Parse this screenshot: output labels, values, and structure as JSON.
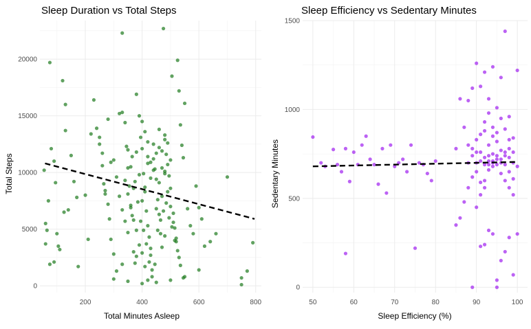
{
  "chart_data": [
    {
      "type": "scatter",
      "title": "Sleep Duration vs Total Steps",
      "xlabel": "Total Minutes Asleep",
      "ylabel": "Total Steps",
      "xlim": [
        40,
        820
      ],
      "ylim": [
        -600,
        23400
      ],
      "xticks": [
        200,
        400,
        600,
        800
      ],
      "yticks": [
        0,
        5000,
        10000,
        15000,
        20000
      ],
      "grid": true,
      "point_color": "#1e7a1e",
      "trend_color": "#000000",
      "trend": {
        "x": [
          58,
          796
        ],
        "y": [
          10800,
          5900
        ]
      },
      "points": [
        [
          75,
          19700
        ],
        [
          120,
          18100
        ],
        [
          55,
          10200
        ],
        [
          70,
          7500
        ],
        [
          65,
          4900
        ],
        [
          80,
          12100
        ],
        [
          60,
          5500
        ],
        [
          90,
          11000
        ],
        [
          95,
          9100
        ],
        [
          100,
          4600
        ],
        [
          105,
          3500
        ],
        [
          110,
          3200
        ],
        [
          125,
          6500
        ],
        [
          130,
          13700
        ],
        [
          140,
          6700
        ],
        [
          150,
          11500
        ],
        [
          160,
          9200
        ],
        [
          170,
          7800
        ],
        [
          175,
          1700
        ],
        [
          130,
          16000
        ],
        [
          60,
          3700
        ],
        [
          75,
          1900
        ],
        [
          90,
          2100
        ],
        [
          230,
          16400
        ],
        [
          240,
          13900
        ],
        [
          250,
          12500
        ],
        [
          260,
          11700
        ],
        [
          265,
          9000
        ],
        [
          270,
          8100
        ],
        [
          280,
          7200
        ],
        [
          285,
          5900
        ],
        [
          290,
          4100
        ],
        [
          300,
          2800
        ],
        [
          310,
          1300
        ],
        [
          320,
          15200
        ],
        [
          330,
          22300
        ],
        [
          340,
          14400
        ],
        [
          345,
          12300
        ],
        [
          350,
          10400
        ],
        [
          355,
          8800
        ],
        [
          360,
          7100
        ],
        [
          365,
          6200
        ],
        [
          370,
          3000
        ],
        [
          375,
          2000
        ],
        [
          380,
          16900
        ],
        [
          390,
          15000
        ],
        [
          395,
          13100
        ],
        [
          400,
          12100
        ],
        [
          405,
          9900
        ],
        [
          410,
          8700
        ],
        [
          415,
          6600
        ],
        [
          420,
          5300
        ],
        [
          425,
          4300
        ],
        [
          430,
          2700
        ],
        [
          435,
          1400
        ],
        [
          440,
          11200
        ],
        [
          445,
          10300
        ],
        [
          450,
          9400
        ],
        [
          455,
          7600
        ],
        [
          460,
          6300
        ],
        [
          465,
          4600
        ],
        [
          470,
          3400
        ],
        [
          475,
          22700
        ],
        [
          480,
          12900
        ],
        [
          485,
          11600
        ],
        [
          490,
          10700
        ],
        [
          495,
          9700
        ],
        [
          500,
          8600
        ],
        [
          505,
          18500
        ],
        [
          510,
          6400
        ],
        [
          515,
          5100
        ],
        [
          520,
          3900
        ],
        [
          525,
          19900
        ],
        [
          530,
          17200
        ],
        [
          535,
          14200
        ],
        [
          540,
          12400
        ],
        [
          545,
          11300
        ],
        [
          550,
          16100
        ],
        [
          560,
          6800
        ],
        [
          570,
          5300
        ],
        [
          580,
          4600
        ],
        [
          590,
          8800
        ],
        [
          600,
          6900
        ],
        [
          610,
          5900
        ],
        [
          620,
          3500
        ],
        [
          640,
          3900
        ],
        [
          660,
          4600
        ],
        [
          700,
          9600
        ],
        [
          750,
          700
        ],
        [
          750,
          100
        ],
        [
          790,
          3800
        ],
        [
          770,
          1300
        ],
        [
          410,
          8300
        ],
        [
          420,
          10800
        ],
        [
          430,
          9500
        ],
        [
          440,
          12500
        ],
        [
          450,
          6800
        ],
        [
          460,
          13800
        ],
        [
          470,
          7900
        ],
        [
          480,
          10100
        ],
        [
          350,
          12000
        ],
        [
          360,
          10500
        ],
        [
          370,
          8600
        ],
        [
          380,
          11800
        ],
        [
          390,
          9800
        ],
        [
          400,
          7500
        ],
        [
          300,
          11100
        ],
        [
          310,
          9600
        ],
        [
          320,
          7900
        ],
        [
          330,
          6700
        ],
        [
          340,
          5700
        ],
        [
          350,
          4700
        ],
        [
          250,
          13100
        ],
        [
          260,
          10600
        ],
        [
          270,
          8400
        ],
        [
          280,
          14700
        ],
        [
          290,
          10900
        ],
        [
          200,
          8000
        ],
        [
          210,
          4100
        ],
        [
          220,
          13400
        ],
        [
          300,
          600
        ],
        [
          350,
          400
        ],
        [
          400,
          200
        ],
        [
          450,
          300
        ],
        [
          500,
          500
        ],
        [
          550,
          800
        ],
        [
          600,
          1400
        ],
        [
          330,
          1900
        ],
        [
          380,
          2600
        ],
        [
          430,
          3300
        ],
        [
          480,
          4400
        ],
        [
          530,
          2500
        ],
        [
          460,
          9100
        ],
        [
          470,
          10400
        ],
        [
          480,
          9900
        ],
        [
          490,
          8300
        ],
        [
          500,
          7000
        ],
        [
          510,
          5600
        ],
        [
          520,
          4200
        ],
        [
          420,
          11400
        ],
        [
          430,
          10900
        ],
        [
          440,
          10200
        ],
        [
          450,
          11700
        ],
        [
          460,
          12200
        ],
        [
          470,
          11900
        ],
        [
          480,
          13300
        ],
        [
          490,
          12600
        ],
        [
          500,
          11100
        ],
        [
          400,
          14500
        ],
        [
          410,
          13600
        ],
        [
          420,
          12700
        ],
        [
          365,
          11400
        ],
        [
          375,
          9200
        ],
        [
          385,
          7400
        ],
        [
          395,
          5700
        ],
        [
          405,
          4900
        ],
        [
          415,
          3700
        ],
        [
          425,
          2100
        ],
        [
          435,
          800
        ],
        [
          445,
          1900
        ],
        [
          455,
          4900
        ],
        [
          465,
          5800
        ],
        [
          475,
          6600
        ],
        [
          485,
          7300
        ],
        [
          495,
          6000
        ],
        [
          505,
          5200
        ],
        [
          515,
          4000
        ],
        [
          525,
          3100
        ],
        [
          535,
          1800
        ],
        [
          545,
          700
        ],
        [
          340,
          9300
        ],
        [
          350,
          8100
        ],
        [
          360,
          6900
        ],
        [
          370,
          5800
        ],
        [
          380,
          4900
        ],
        [
          390,
          3600
        ],
        [
          400,
          2900
        ],
        [
          410,
          1700
        ],
        [
          420,
          500
        ],
        [
          330,
          15300
        ]
      ]
    },
    {
      "type": "scatter",
      "title": "Sleep Efficiency vs Sedentary Minutes",
      "xlabel": "Sleep Efficiency (%)",
      "ylabel": "Sedentary Minutes",
      "xlim": [
        47.5,
        102.5
      ],
      "ylim": [
        -30,
        1500
      ],
      "xticks": [
        50,
        60,
        70,
        80,
        90,
        100
      ],
      "yticks": [
        0,
        500,
        1000,
        1500
      ],
      "grid": true,
      "point_color": "#a020f0",
      "trend_color": "#000000",
      "trend": {
        "x": [
          50,
          100
        ],
        "y": [
          680,
          705
        ]
      },
      "points": [
        [
          50,
          845
        ],
        [
          52,
          700
        ],
        [
          53,
          680
        ],
        [
          55,
          775
        ],
        [
          56,
          690
        ],
        [
          57,
          650
        ],
        [
          58,
          780
        ],
        [
          59,
          595
        ],
        [
          60,
          760
        ],
        [
          61,
          690
        ],
        [
          62,
          800
        ],
        [
          63,
          850
        ],
        [
          64,
          720
        ],
        [
          65,
          690
        ],
        [
          66,
          580
        ],
        [
          67,
          780
        ],
        [
          68,
          530
        ],
        [
          69,
          800
        ],
        [
          70,
          680
        ],
        [
          71,
          700
        ],
        [
          72,
          720
        ],
        [
          73,
          650
        ],
        [
          74,
          800
        ],
        [
          75,
          220
        ],
        [
          76,
          700
        ],
        [
          77,
          690
        ],
        [
          78,
          640
        ],
        [
          79,
          600
        ],
        [
          80,
          710
        ],
        [
          58,
          190
        ],
        [
          85,
          780
        ],
        [
          86,
          1060
        ],
        [
          87,
          900
        ],
        [
          88,
          1050
        ],
        [
          89,
          1120
        ],
        [
          90,
          830
        ],
        [
          90,
          1260
        ],
        [
          91,
          1130
        ],
        [
          92,
          1210
        ],
        [
          92,
          880
        ],
        [
          93,
          1060
        ],
        [
          94,
          1240
        ],
        [
          95,
          1010
        ],
        [
          96,
          1180
        ],
        [
          97,
          1440
        ],
        [
          98,
          960
        ],
        [
          99,
          840
        ],
        [
          100,
          1220
        ],
        [
          100,
          300
        ],
        [
          95,
          40
        ],
        [
          96,
          150
        ],
        [
          97,
          200
        ],
        [
          98,
          280
        ],
        [
          99,
          70
        ],
        [
          93,
          320
        ],
        [
          92,
          240
        ],
        [
          94,
          300
        ],
        [
          91,
          230
        ],
        [
          95,
          0
        ],
        [
          89,
          0
        ],
        [
          85,
          350
        ],
        [
          86,
          390
        ],
        [
          87,
          480
        ],
        [
          88,
          560
        ],
        [
          89,
          620
        ],
        [
          90,
          700
        ],
        [
          91,
          760
        ],
        [
          92,
          690
        ],
        [
          93,
          740
        ],
        [
          94,
          710
        ],
        [
          95,
          690
        ],
        [
          96,
          720
        ],
        [
          97,
          760
        ],
        [
          98,
          730
        ],
        [
          99,
          700
        ],
        [
          88,
          800
        ],
        [
          89,
          780
        ],
        [
          90,
          650
        ],
        [
          91,
          590
        ],
        [
          92,
          560
        ],
        [
          93,
          800
        ],
        [
          94,
          850
        ],
        [
          95,
          820
        ],
        [
          96,
          640
        ],
        [
          97,
          600
        ],
        [
          98,
          560
        ],
        [
          99,
          520
        ],
        [
          90,
          450
        ],
        [
          91,
          520
        ],
        [
          92,
          600
        ],
        [
          93,
          660
        ],
        [
          94,
          700
        ],
        [
          95,
          740
        ],
        [
          96,
          770
        ],
        [
          97,
          690
        ],
        [
          98,
          650
        ],
        [
          99,
          610
        ],
        [
          100,
          680
        ],
        [
          91,
          860
        ],
        [
          92,
          930
        ],
        [
          93,
          980
        ],
        [
          94,
          900
        ],
        [
          95,
          870
        ],
        [
          96,
          950
        ],
        [
          97,
          890
        ],
        [
          98,
          830
        ],
        [
          88,
          700
        ],
        [
          89,
          740
        ],
        [
          90,
          760
        ],
        [
          91,
          710
        ],
        [
          92,
          730
        ],
        [
          93,
          690
        ],
        [
          94,
          680
        ],
        [
          95,
          720
        ],
        [
          96,
          700
        ],
        [
          97,
          740
        ],
        [
          98,
          780
        ],
        [
          99,
          760
        ],
        [
          93,
          710
        ],
        [
          94,
          750
        ]
      ]
    }
  ]
}
